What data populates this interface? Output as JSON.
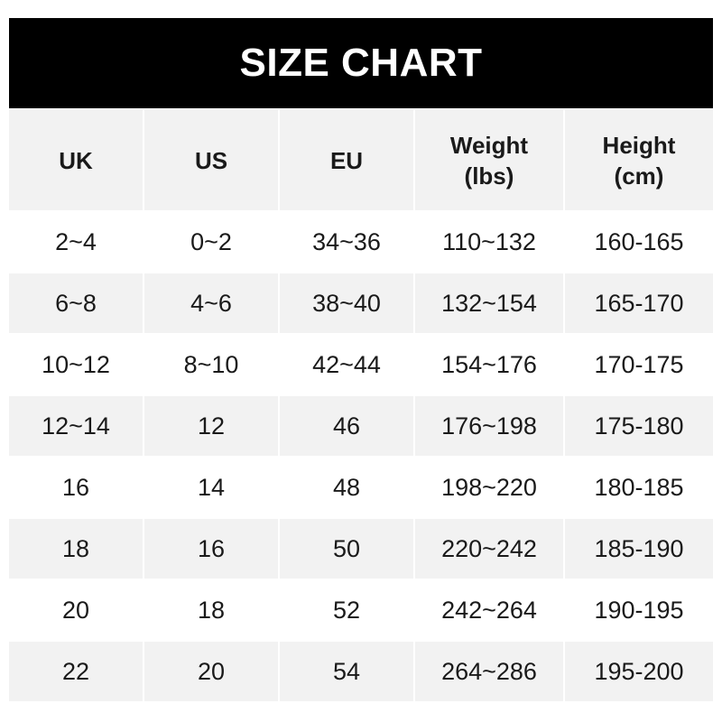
{
  "title": "SIZE CHART",
  "headers": [
    {
      "line1": "UK",
      "line2": ""
    },
    {
      "line1": "US",
      "line2": ""
    },
    {
      "line1": "EU",
      "line2": ""
    },
    {
      "line1": "Weight",
      "line2": "(lbs)"
    },
    {
      "line1": "Height",
      "line2": "(cm)"
    }
  ],
  "rows": [
    [
      "2~4",
      "0~2",
      "34~36",
      "110~132",
      "160-165"
    ],
    [
      "6~8",
      "4~6",
      "38~40",
      "132~154",
      "165-170"
    ],
    [
      "10~12",
      "8~10",
      "42~44",
      "154~176",
      "170-175"
    ],
    [
      "12~14",
      "12",
      "46",
      "176~198",
      "175-180"
    ],
    [
      "16",
      "14",
      "48",
      "198~220",
      "180-185"
    ],
    [
      "18",
      "16",
      "50",
      "220~242",
      "185-190"
    ],
    [
      "20",
      "18",
      "52",
      "242~264",
      "190-195"
    ],
    [
      "22",
      "20",
      "54",
      "264~286",
      "195-200"
    ]
  ],
  "colors": {
    "header_bg": "#000000",
    "stripe": "#f2f2f2"
  }
}
